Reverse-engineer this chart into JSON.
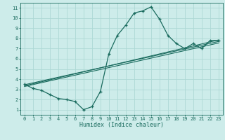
{
  "xlabel": "Humidex (Indice chaleur)",
  "bg_color": "#cdecea",
  "grid_color": "#add8d5",
  "line_color": "#1a6b5e",
  "xlim": [
    -0.5,
    23.5
  ],
  "ylim": [
    0.5,
    11.5
  ],
  "xticks": [
    0,
    1,
    2,
    3,
    4,
    5,
    6,
    7,
    8,
    9,
    10,
    11,
    12,
    13,
    14,
    15,
    16,
    17,
    18,
    19,
    20,
    21,
    22,
    23
  ],
  "yticks": [
    1,
    2,
    3,
    4,
    5,
    6,
    7,
    8,
    9,
    10,
    11
  ],
  "main_x": [
    0,
    1,
    2,
    3,
    4,
    5,
    6,
    7,
    8,
    9,
    10,
    11,
    12,
    13,
    14,
    15,
    16,
    17,
    18,
    19,
    20,
    21,
    22,
    23
  ],
  "main_y": [
    3.5,
    3.1,
    2.9,
    2.5,
    2.1,
    2.0,
    1.8,
    1.0,
    1.3,
    2.8,
    6.5,
    8.3,
    9.3,
    10.5,
    10.7,
    11.1,
    9.9,
    8.3,
    7.5,
    7.0,
    7.5,
    7.0,
    7.8,
    7.8
  ],
  "line2_x": [
    0,
    23
  ],
  "line2_y": [
    3.35,
    7.85
  ],
  "line3_x": [
    0,
    23
  ],
  "line3_y": [
    3.45,
    7.7
  ],
  "line4_x": [
    0,
    23
  ],
  "line4_y": [
    3.28,
    7.55
  ],
  "xlabel_fontsize": 6.0,
  "tick_fontsize": 5.0
}
